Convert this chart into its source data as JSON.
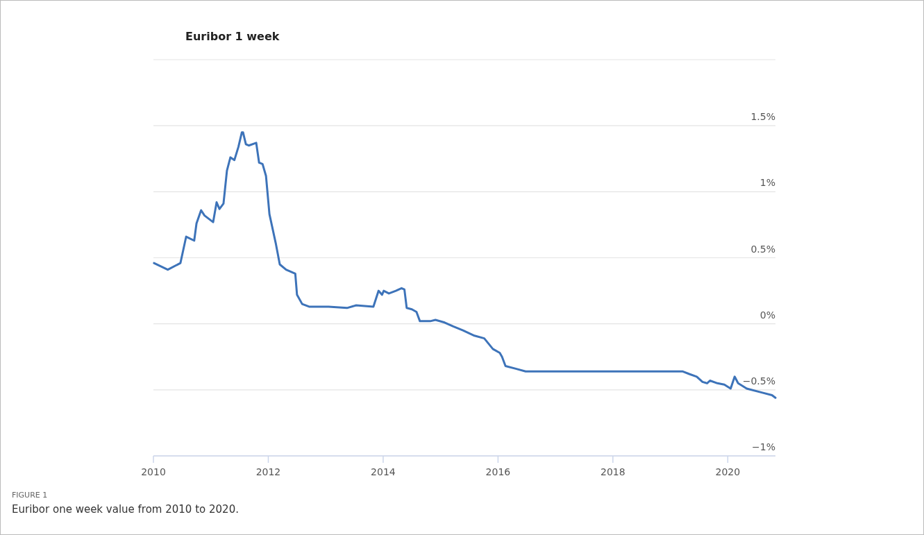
{
  "chart_data": {
    "type": "line",
    "title": "Euribor 1 week",
    "annotations": [
      "FIGURE 1",
      "Euribor one week value from 2010 to 2020."
    ],
    "series": [
      {
        "color": "#3d73b9",
        "x": [
          2010.01,
          2010.25,
          2010.47,
          2010.57,
          2010.71,
          2010.75,
          2010.83,
          2010.89,
          2011.04,
          2011.1,
          2011.15,
          2011.22,
          2011.28,
          2011.34,
          2011.41,
          2011.48,
          2011.54,
          2011.56,
          2011.61,
          2011.66,
          2011.79,
          2011.84,
          2011.9,
          2011.96,
          2012.02,
          2012.13,
          2012.2,
          2012.31,
          2012.47,
          2012.5,
          2012.59,
          2012.71,
          2013.05,
          2013.37,
          2013.53,
          2013.83,
          2013.92,
          2013.98,
          2014.01,
          2014.1,
          2014.22,
          2014.32,
          2014.37,
          2014.41,
          2014.5,
          2014.58,
          2014.64,
          2014.82,
          2014.91,
          2015.07,
          2015.22,
          2015.39,
          2015.59,
          2015.76,
          2015.91,
          2016.03,
          2016.07,
          2016.13,
          2016.31,
          2016.48,
          2016.92,
          2018.21,
          2018.9,
          2019.21,
          2019.33,
          2019.46,
          2019.56,
          2019.64,
          2019.69,
          2019.82,
          2019.94,
          2020.05,
          2020.12,
          2020.18,
          2020.33,
          2020.59,
          2020.77,
          2020.83
        ],
        "values": [
          0.46,
          0.41,
          0.46,
          0.66,
          0.63,
          0.76,
          0.86,
          0.82,
          0.77,
          0.92,
          0.87,
          0.91,
          1.16,
          1.26,
          1.24,
          1.34,
          1.45,
          1.45,
          1.36,
          1.35,
          1.37,
          1.22,
          1.21,
          1.12,
          0.83,
          0.61,
          0.45,
          0.41,
          0.38,
          0.22,
          0.15,
          0.13,
          0.13,
          0.12,
          0.14,
          0.13,
          0.25,
          0.22,
          0.25,
          0.23,
          0.25,
          0.27,
          0.26,
          0.12,
          0.11,
          0.09,
          0.02,
          0.02,
          0.03,
          0.01,
          -0.02,
          -0.05,
          -0.09,
          -0.11,
          -0.19,
          -0.22,
          -0.25,
          -0.32,
          -0.34,
          -0.36,
          -0.36,
          -0.36,
          -0.36,
          -0.36,
          -0.38,
          -0.4,
          -0.44,
          -0.45,
          -0.43,
          -0.45,
          -0.46,
          -0.49,
          -0.4,
          -0.45,
          -0.49,
          -0.52,
          -0.54,
          -0.56
        ]
      }
    ],
    "xlim": [
      2010,
      2020.83
    ],
    "xticks": [
      2010,
      2012,
      2014,
      2016,
      2018,
      2020
    ],
    "ylim": [
      -1,
      2
    ],
    "yticks": [
      {
        "value": -1,
        "label": "−1%"
      },
      {
        "value": -0.5,
        "label": "−0.5%"
      },
      {
        "value": 0,
        "label": "0%"
      },
      {
        "value": 0.5,
        "label": "0.5%"
      },
      {
        "value": 1,
        "label": "1%"
      },
      {
        "value": 1.5,
        "label": "1.5%"
      },
      {
        "value": 2,
        "label": null
      }
    ],
    "grid": "y",
    "marker": "none",
    "line_style": "solid"
  }
}
